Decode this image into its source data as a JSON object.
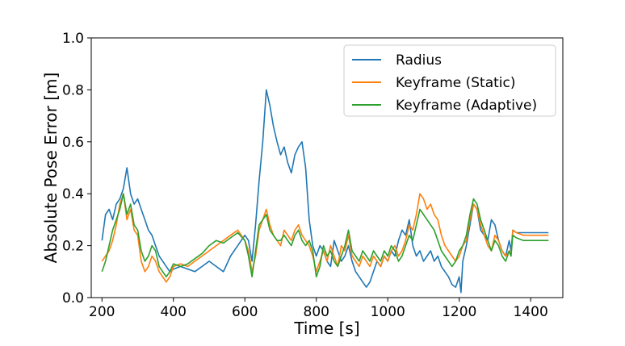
{
  "chart_data": {
    "type": "line",
    "title": "",
    "xlabel": "Time [s]",
    "ylabel": "Absolute Pose Error [m]",
    "xlim": [
      170,
      1490
    ],
    "ylim": [
      0.0,
      1.0
    ],
    "xticks": [
      200,
      400,
      600,
      800,
      1000,
      1200,
      1400
    ],
    "xtick_labels": [
      "200",
      "400",
      "600",
      "800",
      "1000",
      "1200",
      "1400"
    ],
    "yticks": [
      0.0,
      0.2,
      0.4,
      0.6,
      0.8,
      1.0
    ],
    "ytick_labels": [
      "0.0",
      "0.2",
      "0.4",
      "0.6",
      "0.8",
      "1.0"
    ],
    "grid": false,
    "legend_position": "top-right",
    "colors": {
      "Radius": "#1f77b4",
      "Keyframe (Static)": "#ff7f0e",
      "Keyframe (Adaptive)": "#2ca02c"
    },
    "series": [
      {
        "name": "Radius",
        "color": "#1f77b4",
        "x": [
          200,
          210,
          220,
          230,
          240,
          250,
          260,
          270,
          280,
          290,
          300,
          310,
          320,
          330,
          340,
          350,
          360,
          370,
          380,
          390,
          400,
          420,
          440,
          460,
          480,
          500,
          520,
          540,
          560,
          580,
          600,
          610,
          620,
          630,
          640,
          650,
          660,
          670,
          680,
          690,
          700,
          710,
          720,
          730,
          740,
          750,
          760,
          770,
          780,
          790,
          800,
          810,
          820,
          830,
          840,
          850,
          860,
          870,
          880,
          890,
          900,
          910,
          920,
          930,
          940,
          950,
          960,
          970,
          980,
          990,
          1000,
          1010,
          1020,
          1030,
          1040,
          1050,
          1060,
          1070,
          1080,
          1090,
          1100,
          1110,
          1120,
          1130,
          1140,
          1150,
          1160,
          1170,
          1180,
          1190,
          1200,
          1205,
          1210,
          1220,
          1230,
          1240,
          1250,
          1260,
          1270,
          1280,
          1290,
          1300,
          1310,
          1320,
          1330,
          1340,
          1345,
          1350,
          1360,
          1380,
          1400,
          1420,
          1440,
          1450
        ],
        "y": [
          0.22,
          0.32,
          0.34,
          0.3,
          0.36,
          0.38,
          0.42,
          0.5,
          0.4,
          0.36,
          0.38,
          0.34,
          0.3,
          0.26,
          0.24,
          0.2,
          0.16,
          0.14,
          0.12,
          0.1,
          0.11,
          0.12,
          0.11,
          0.1,
          0.12,
          0.14,
          0.12,
          0.1,
          0.16,
          0.2,
          0.24,
          0.22,
          0.14,
          0.28,
          0.45,
          0.6,
          0.8,
          0.74,
          0.66,
          0.6,
          0.55,
          0.58,
          0.52,
          0.48,
          0.55,
          0.58,
          0.6,
          0.5,
          0.3,
          0.2,
          0.16,
          0.2,
          0.18,
          0.14,
          0.12,
          0.22,
          0.18,
          0.14,
          0.16,
          0.2,
          0.14,
          0.1,
          0.08,
          0.06,
          0.04,
          0.06,
          0.1,
          0.14,
          0.12,
          0.16,
          0.14,
          0.18,
          0.16,
          0.22,
          0.26,
          0.24,
          0.3,
          0.2,
          0.16,
          0.18,
          0.14,
          0.16,
          0.18,
          0.14,
          0.16,
          0.12,
          0.1,
          0.08,
          0.05,
          0.04,
          0.08,
          0.02,
          0.14,
          0.2,
          0.28,
          0.36,
          0.34,
          0.26,
          0.24,
          0.22,
          0.3,
          0.28,
          0.22,
          0.18,
          0.16,
          0.22,
          0.18,
          0.26,
          0.25,
          0.25,
          0.25,
          0.25,
          0.25,
          0.25
        ]
      },
      {
        "name": "Keyframe (Static)",
        "color": "#ff7f0e",
        "x": [
          200,
          210,
          220,
          230,
          240,
          250,
          260,
          270,
          280,
          290,
          300,
          310,
          320,
          330,
          340,
          350,
          360,
          370,
          380,
          390,
          400,
          420,
          440,
          460,
          480,
          500,
          520,
          540,
          560,
          580,
          600,
          610,
          620,
          630,
          640,
          650,
          660,
          670,
          680,
          690,
          700,
          710,
          720,
          730,
          740,
          750,
          760,
          770,
          780,
          790,
          800,
          810,
          820,
          830,
          840,
          850,
          860,
          870,
          880,
          890,
          900,
          910,
          920,
          930,
          940,
          950,
          960,
          970,
          980,
          990,
          1000,
          1010,
          1020,
          1030,
          1040,
          1050,
          1060,
          1070,
          1080,
          1090,
          1100,
          1110,
          1120,
          1130,
          1140,
          1150,
          1160,
          1170,
          1180,
          1190,
          1200,
          1210,
          1220,
          1230,
          1240,
          1250,
          1260,
          1270,
          1280,
          1290,
          1300,
          1310,
          1320,
          1330,
          1340,
          1345,
          1350,
          1360,
          1380,
          1400,
          1420,
          1440,
          1450
        ],
        "y": [
          0.14,
          0.16,
          0.18,
          0.22,
          0.28,
          0.36,
          0.4,
          0.3,
          0.34,
          0.26,
          0.24,
          0.14,
          0.1,
          0.12,
          0.16,
          0.14,
          0.1,
          0.08,
          0.06,
          0.08,
          0.12,
          0.13,
          0.12,
          0.14,
          0.16,
          0.18,
          0.2,
          0.22,
          0.24,
          0.26,
          0.22,
          0.18,
          0.1,
          0.16,
          0.26,
          0.3,
          0.34,
          0.28,
          0.24,
          0.22,
          0.2,
          0.26,
          0.24,
          0.22,
          0.26,
          0.28,
          0.24,
          0.22,
          0.2,
          0.16,
          0.1,
          0.14,
          0.18,
          0.14,
          0.2,
          0.16,
          0.12,
          0.2,
          0.18,
          0.24,
          0.16,
          0.14,
          0.12,
          0.16,
          0.14,
          0.12,
          0.16,
          0.14,
          0.12,
          0.16,
          0.14,
          0.18,
          0.2,
          0.16,
          0.18,
          0.22,
          0.28,
          0.26,
          0.32,
          0.4,
          0.38,
          0.34,
          0.36,
          0.32,
          0.3,
          0.24,
          0.2,
          0.18,
          0.16,
          0.14,
          0.16,
          0.2,
          0.22,
          0.3,
          0.36,
          0.34,
          0.28,
          0.24,
          0.2,
          0.18,
          0.24,
          0.22,
          0.18,
          0.16,
          0.18,
          0.16,
          0.26,
          0.25,
          0.24,
          0.24,
          0.24,
          0.24,
          0.24
        ]
      },
      {
        "name": "Keyframe (Adaptive)",
        "color": "#2ca02c",
        "x": [
          200,
          210,
          220,
          230,
          240,
          250,
          260,
          270,
          280,
          290,
          300,
          310,
          320,
          330,
          340,
          350,
          360,
          370,
          380,
          390,
          400,
          420,
          440,
          460,
          480,
          500,
          520,
          540,
          560,
          580,
          600,
          610,
          620,
          630,
          640,
          650,
          660,
          670,
          680,
          690,
          700,
          710,
          720,
          730,
          740,
          750,
          760,
          770,
          780,
          790,
          800,
          810,
          820,
          830,
          840,
          850,
          860,
          870,
          880,
          890,
          900,
          910,
          920,
          930,
          940,
          950,
          960,
          970,
          980,
          990,
          1000,
          1010,
          1020,
          1030,
          1040,
          1050,
          1060,
          1070,
          1080,
          1090,
          1100,
          1110,
          1120,
          1130,
          1140,
          1150,
          1160,
          1170,
          1180,
          1190,
          1200,
          1210,
          1220,
          1230,
          1240,
          1250,
          1260,
          1270,
          1280,
          1290,
          1300,
          1310,
          1320,
          1330,
          1340,
          1345,
          1350,
          1360,
          1380,
          1400,
          1420,
          1440,
          1450
        ],
        "y": [
          0.1,
          0.14,
          0.2,
          0.26,
          0.3,
          0.34,
          0.4,
          0.32,
          0.36,
          0.28,
          0.26,
          0.18,
          0.14,
          0.16,
          0.2,
          0.18,
          0.12,
          0.1,
          0.08,
          0.1,
          0.13,
          0.12,
          0.13,
          0.15,
          0.17,
          0.2,
          0.22,
          0.21,
          0.23,
          0.25,
          0.22,
          0.16,
          0.08,
          0.18,
          0.28,
          0.3,
          0.32,
          0.26,
          0.24,
          0.22,
          0.22,
          0.24,
          0.22,
          0.2,
          0.24,
          0.26,
          0.22,
          0.2,
          0.22,
          0.18,
          0.08,
          0.12,
          0.2,
          0.16,
          0.18,
          0.14,
          0.12,
          0.16,
          0.2,
          0.26,
          0.18,
          0.16,
          0.14,
          0.18,
          0.16,
          0.14,
          0.18,
          0.16,
          0.14,
          0.18,
          0.16,
          0.2,
          0.18,
          0.14,
          0.16,
          0.2,
          0.24,
          0.22,
          0.28,
          0.34,
          0.32,
          0.3,
          0.28,
          0.26,
          0.22,
          0.18,
          0.16,
          0.14,
          0.12,
          0.14,
          0.18,
          0.2,
          0.24,
          0.32,
          0.38,
          0.36,
          0.3,
          0.26,
          0.22,
          0.18,
          0.22,
          0.2,
          0.16,
          0.14,
          0.18,
          0.16,
          0.24,
          0.23,
          0.22,
          0.22,
          0.22,
          0.22,
          0.22
        ]
      }
    ]
  }
}
